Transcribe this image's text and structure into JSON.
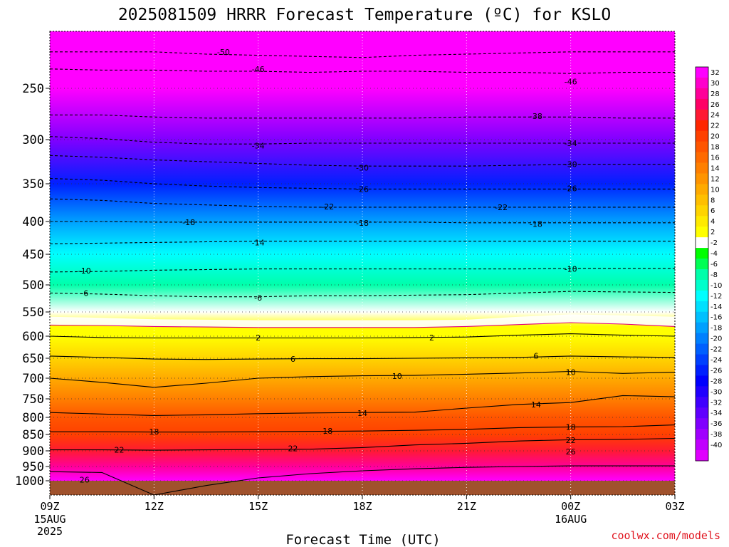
{
  "title": "2025081509 HRRR Forecast Temperature (ºC) for KSLO",
  "credit": "coolwx.com/models",
  "chart_data": {
    "type": "heatmap",
    "title": "2025081509 HRRR Forecast Temperature (ºC) for KSLO",
    "xlabel": "Forecast Time (UTC)",
    "ylabel": "",
    "x_ticks": [
      {
        "label": "09Z",
        "sub": [
          "15AUG",
          "2025"
        ],
        "hour": 0
      },
      {
        "label": "12Z",
        "sub": [],
        "hour": 3
      },
      {
        "label": "15Z",
        "sub": [],
        "hour": 6
      },
      {
        "label": "18Z",
        "sub": [],
        "hour": 9
      },
      {
        "label": "21Z",
        "sub": [],
        "hour": 12
      },
      {
        "label": "00Z",
        "sub": [
          "16AUG"
        ],
        "hour": 15
      },
      {
        "label": "03Z",
        "sub": [],
        "hour": 18
      }
    ],
    "xlim": [
      0,
      18
    ],
    "y_ticks": [
      250,
      300,
      350,
      400,
      450,
      500,
      550,
      600,
      650,
      700,
      750,
      800,
      850,
      900,
      950,
      1000
    ],
    "ylim": [
      1030,
      200
    ],
    "y_unit": "hPa",
    "colorbar": {
      "labels": [
        "32",
        "30",
        "28",
        "26",
        "24",
        "22",
        "20",
        "18",
        "16",
        "14",
        "12",
        "10",
        "8",
        "6",
        "4",
        "2",
        "-2",
        "-4",
        "-6",
        "-8",
        "-10",
        "-12",
        "-14",
        "-16",
        "-18",
        "-20",
        "-22",
        "-24",
        "-26",
        "-28",
        "-30",
        "-32",
        "-34",
        "-36",
        "-38",
        "-40"
      ],
      "colors": [
        "#ff00ff",
        "#ff00cc",
        "#ff0099",
        "#ff0066",
        "#ff1a33",
        "#ff2600",
        "#ff4000",
        "#ff5500",
        "#ff6a00",
        "#ff7f00",
        "#ff9400",
        "#ffaa00",
        "#ffbf00",
        "#ffd400",
        "#ffea00",
        "#ffff00",
        "#ffffff",
        "#00ff00",
        "#00ff55",
        "#00ffaa",
        "#00ffcc",
        "#00ffff",
        "#00e0ff",
        "#00c0ff",
        "#00a0ff",
        "#0080ff",
        "#0060ff",
        "#0040ff",
        "#0020ff",
        "#0000ff",
        "#2000ff",
        "#4000ff",
        "#6000ff",
        "#8000ff",
        "#a000ff",
        "#c000ff",
        "#e000ff"
      ]
    },
    "ground_color": "#a0522d",
    "isotherms": [
      {
        "label": "-50",
        "p": [
          218,
          218,
          218,
          220,
          221,
          222,
          223,
          221,
          220,
          219,
          218,
          218,
          218
        ],
        "pos": [
          [
            5,
            218
          ]
        ],
        "dashed": true
      },
      {
        "label": "-46",
        "p": [
          233,
          234,
          234,
          235,
          235,
          236,
          235,
          235,
          236,
          236,
          237,
          236,
          236
        ],
        "pos": [
          [
            6,
            233
          ],
          [
            15,
            244
          ]
        ],
        "dashed": true
      },
      {
        "label": "-38",
        "p": [
          276,
          276,
          278,
          279,
          279,
          279,
          279,
          279,
          278,
          278,
          278,
          279,
          279
        ],
        "pos": [
          [
            14,
            277
          ]
        ],
        "dashed": true
      },
      {
        "label": "-34",
        "p": [
          297,
          299,
          303,
          305,
          305,
          304,
          304,
          304,
          304,
          304,
          304,
          304,
          304
        ],
        "pos": [
          [
            6,
            307
          ],
          [
            15,
            304
          ]
        ],
        "dashed": true
      },
      {
        "label": "-30",
        "p": [
          318,
          320,
          323,
          325,
          327,
          329,
          330,
          330,
          330,
          329,
          328,
          328,
          328
        ],
        "pos": [
          [
            9,
            332
          ],
          [
            15,
            328
          ]
        ],
        "dashed": true
      },
      {
        "label": "-26",
        "p": [
          344,
          346,
          350,
          353,
          355,
          356,
          357,
          357,
          357,
          357,
          357,
          357,
          357
        ],
        "pos": [
          [
            9,
            357
          ],
          [
            15,
            356
          ]
        ],
        "dashed": true
      },
      {
        "label": "-22",
        "p": [
          370,
          372,
          376,
          378,
          380,
          381,
          381,
          381,
          381,
          381,
          381,
          381,
          381
        ],
        "pos": [
          [
            8,
            380
          ],
          [
            13,
            381
          ]
        ],
        "dashed": true
      },
      {
        "label": "-18",
        "p": [
          400,
          400,
          401,
          401,
          401,
          401,
          401,
          401,
          402,
          402,
          402,
          402,
          402
        ],
        "pos": [
          [
            4,
            401
          ],
          [
            9,
            402
          ],
          [
            14,
            404
          ]
        ],
        "dashed": true
      },
      {
        "label": "-14",
        "p": [
          434,
          433,
          432,
          431,
          430,
          430,
          430,
          430,
          430,
          430,
          430,
          430,
          430
        ],
        "pos": [
          [
            6,
            432
          ]
        ],
        "dashed": true
      },
      {
        "label": "-10",
        "p": [
          479,
          478,
          476,
          475,
          474,
          474,
          474,
          474,
          474,
          474,
          473,
          473,
          473
        ],
        "pos": [
          [
            1,
            477
          ],
          [
            15,
            474
          ]
        ],
        "dashed": true
      },
      {
        "label": "-6",
        "p": [
          515,
          517,
          520,
          522,
          522,
          520,
          520,
          519,
          518,
          515,
          512,
          513,
          514
        ],
        "pos": [
          [
            1,
            515
          ],
          [
            6,
            524
          ]
        ],
        "dashed": true
      },
      {
        "label": "2",
        "p": [
          577,
          578,
          580,
          581,
          582,
          582,
          582,
          582,
          580,
          576,
          572,
          575,
          580
        ],
        "pos": [],
        "color": "#e0007a",
        "dashed": false
      },
      {
        "label": "2",
        "p": [
          600,
          603,
          604,
          604,
          604,
          604,
          604,
          603,
          602,
          598,
          595,
          598,
          600
        ],
        "pos": [
          [
            6,
            603
          ],
          [
            11,
            603
          ]
        ],
        "dashed": false
      },
      {
        "label": "6",
        "p": [
          645,
          648,
          652,
          653,
          652,
          651,
          651,
          650,
          649,
          648,
          645,
          647,
          648
        ],
        "pos": [
          [
            7,
            652
          ],
          [
            14,
            644
          ]
        ],
        "dashed": false
      },
      {
        "label": "10",
        "p": [
          700,
          710,
          722,
          712,
          700,
          696,
          694,
          693,
          690,
          687,
          683,
          688,
          685
        ],
        "pos": [
          [
            10,
            695
          ],
          [
            15,
            685
          ]
        ],
        "dashed": false
      },
      {
        "label": "14",
        "p": [
          787,
          791,
          795,
          793,
          790,
          788,
          787,
          786,
          775,
          765,
          760,
          742,
          745
        ],
        "pos": [
          [
            9,
            788
          ],
          [
            14,
            765
          ]
        ],
        "dashed": false
      },
      {
        "label": "18",
        "p": [
          842,
          842,
          843,
          843,
          842,
          841,
          840,
          838,
          835,
          830,
          828,
          827,
          822
        ],
        "pos": [
          [
            3,
            842
          ],
          [
            8,
            840
          ],
          [
            15,
            828
          ]
        ],
        "dashed": false
      },
      {
        "label": "22",
        "p": [
          897,
          897,
          898,
          897,
          896,
          895,
          890,
          882,
          877,
          870,
          866,
          865,
          862
        ],
        "pos": [
          [
            2,
            897
          ],
          [
            7,
            892
          ],
          [
            15,
            867
          ]
        ],
        "dashed": false
      },
      {
        "label": "26",
        "p": [
          968,
          971,
          1030,
          1010,
          990,
          975,
          965,
          958,
          953,
          950,
          948,
          948,
          948
        ],
        "pos": [
          [
            1,
            996
          ],
          [
            15,
            902
          ]
        ],
        "dashed": false
      }
    ]
  }
}
